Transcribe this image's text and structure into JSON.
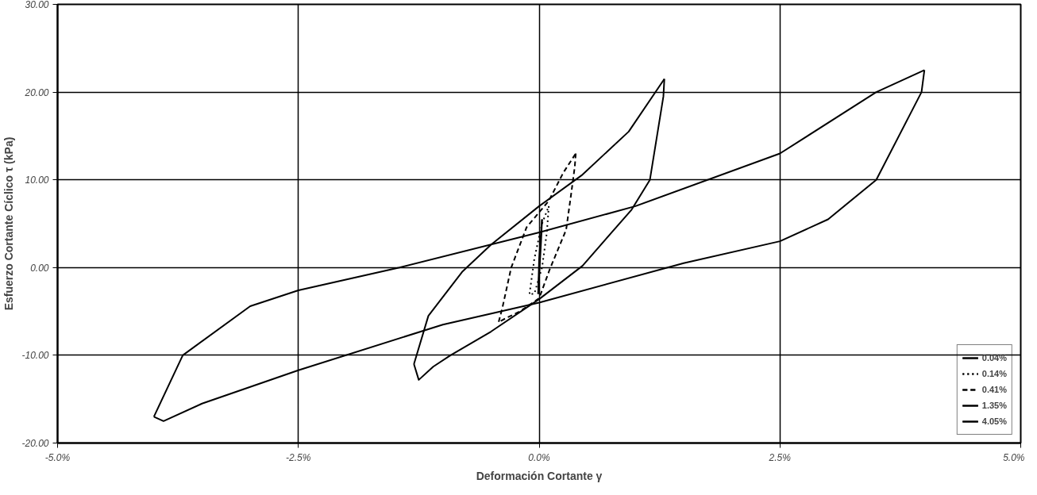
{
  "chart_data": {
    "type": "line",
    "xlabel": "Deformación Cortante γ",
    "ylabel": "Esfuerzo Cortante Cíclico τ (kPa)",
    "xlim": [
      -5,
      5
    ],
    "ylim": [
      -20,
      30
    ],
    "xticks": [
      {
        "value": -5,
        "label": "-5.0%"
      },
      {
        "value": -2.5,
        "label": "-2.5%"
      },
      {
        "value": 0,
        "label": "0.0%"
      },
      {
        "value": 2.5,
        "label": "2.5%"
      },
      {
        "value": 5,
        "label": "5.0%"
      }
    ],
    "yticks": [
      {
        "value": -20,
        "label": "-20.00"
      },
      {
        "value": -10,
        "label": "-10.00"
      },
      {
        "value": 0,
        "label": "0.00"
      },
      {
        "value": 10,
        "label": "10.00"
      },
      {
        "value": 20,
        "label": "20.00"
      },
      {
        "value": 30,
        "label": "30.00"
      }
    ],
    "grid": true,
    "legend": "bottom right",
    "series": [
      {
        "name": "0.04%",
        "color": "#000000",
        "line_style": "solid",
        "x": [
          -0.01,
          0.0,
          0.03
        ],
        "values": [
          -3,
          1,
          5.5
        ]
      },
      {
        "color": "#000000",
        "line_style": "solid",
        "x": [
          0.03,
          0.02,
          0.0,
          -0.01
        ],
        "values": [
          5.5,
          3,
          -1,
          -3
        ]
      },
      {
        "name": "0.14%",
        "color": "#000000",
        "line_style": "dotted",
        "x": [
          -0.1,
          -0.05,
          0.03,
          0.1
        ],
        "values": [
          -3,
          1,
          5,
          7
        ]
      },
      {
        "color": "#000000",
        "line_style": "dotted",
        "x": [
          0.1,
          0.08,
          0.03,
          -0.05,
          -0.1
        ],
        "values": [
          7,
          4,
          0,
          -3,
          -3
        ]
      },
      {
        "name": "0.41%",
        "color": "#000000",
        "line_style": "dashed",
        "x": [
          -0.42,
          -0.38,
          -0.29,
          -0.13,
          0.1,
          0.25,
          0.38
        ],
        "values": [
          -6.2,
          -4.5,
          0,
          4.6,
          7.6,
          10.8,
          13
        ]
      },
      {
        "color": "#000000",
        "line_style": "dashed",
        "x": [
          0.38,
          0.37,
          0.33,
          0.28,
          0.11,
          0.0,
          -0.2,
          -0.35,
          -0.42
        ],
        "values": [
          13,
          11.5,
          8.2,
          4.3,
          -0.2,
          -3.5,
          -5,
          -5.8,
          -6.2
        ]
      },
      {
        "name": "1.35%",
        "color": "#000000",
        "line_style": "solid",
        "x": [
          -1.3,
          -1.15,
          -0.8,
          -0.5,
          0.0,
          0.44,
          0.93,
          1.3
        ],
        "values": [
          -11,
          -5.5,
          -0.5,
          2.6,
          7,
          10.5,
          15.5,
          21.5
        ]
      },
      {
        "color": "#000000",
        "line_style": "solid",
        "x": [
          1.3,
          1.29,
          1.15,
          0.96,
          0.45,
          0.0,
          -0.5,
          -0.92,
          -1.1,
          -1.25,
          -1.3
        ],
        "values": [
          21.5,
          19.5,
          10,
          6.6,
          0.2,
          -3.6,
          -7.3,
          -10,
          -11.3,
          -12.8,
          -11
        ]
      },
      {
        "name": "4.05%",
        "color": "#000000",
        "line_style": "solid",
        "x": [
          -4.0,
          -3.7,
          -3.0,
          -2.5,
          -1.45,
          0.0,
          1.0,
          2.5,
          3.5,
          4.0
        ],
        "values": [
          -17,
          -10,
          -4.4,
          -2.6,
          0,
          4,
          7,
          13,
          20,
          22.5
        ]
      },
      {
        "color": "#000000",
        "line_style": "solid",
        "x": [
          4.0,
          3.97,
          3.5,
          3.0,
          2.5,
          1.5,
          0.0,
          -1.0,
          -2.5,
          -3.5,
          -3.9,
          -4.0
        ],
        "values": [
          22.5,
          20,
          10,
          5.5,
          3,
          0.5,
          -4,
          -6.5,
          -11.7,
          -15.5,
          -17.5,
          -17
        ]
      }
    ]
  }
}
